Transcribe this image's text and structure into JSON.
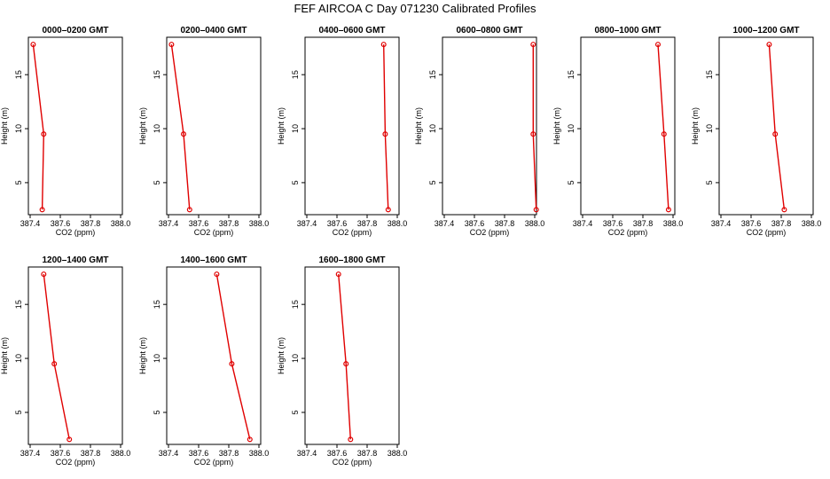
{
  "title": "FEF AIRCOA C  Day 071230  Calibrated Profiles",
  "chart_data": {
    "type": "line",
    "xlabel": "CO2 (ppm)",
    "ylabel": "Height (m)",
    "xlim": [
      387.4,
      388.0
    ],
    "ylim": [
      2.2,
      18.3
    ],
    "x_ticks": [
      "387.4",
      "387.6",
      "387.8",
      "388.0"
    ],
    "y_ticks": [
      "5",
      "10",
      "15"
    ],
    "series_color": "#e00000",
    "panels": [
      {
        "title": "0000–0200 GMT",
        "x": [
          387.48,
          387.49,
          387.42
        ],
        "y": [
          2.5,
          9.5,
          17.8
        ]
      },
      {
        "title": "0200–0400 GMT",
        "x": [
          387.54,
          387.5,
          387.42
        ],
        "y": [
          2.5,
          9.5,
          17.8
        ]
      },
      {
        "title": "0400–0600 GMT",
        "x": [
          387.94,
          387.92,
          387.91
        ],
        "y": [
          2.5,
          9.5,
          17.8
        ]
      },
      {
        "title": "0600–0800 GMT",
        "x": [
          388.01,
          387.99,
          387.99
        ],
        "y": [
          2.5,
          9.5,
          17.8
        ]
      },
      {
        "title": "0800–1000 GMT",
        "x": [
          387.97,
          387.94,
          387.9
        ],
        "y": [
          2.5,
          9.5,
          17.8
        ]
      },
      {
        "title": "1000–1200 GMT",
        "x": [
          387.82,
          387.76,
          387.72
        ],
        "y": [
          2.5,
          9.5,
          17.8
        ]
      },
      {
        "title": "1200–1400 GMT",
        "x": [
          387.66,
          387.56,
          387.49
        ],
        "y": [
          2.5,
          9.5,
          17.8
        ]
      },
      {
        "title": "1400–1600 GMT",
        "x": [
          387.94,
          387.82,
          387.72
        ],
        "y": [
          2.5,
          9.5,
          17.8
        ]
      },
      {
        "title": "1600–1800 GMT",
        "x": [
          387.69,
          387.66,
          387.61
        ],
        "y": [
          2.5,
          9.5,
          17.8
        ]
      }
    ]
  }
}
